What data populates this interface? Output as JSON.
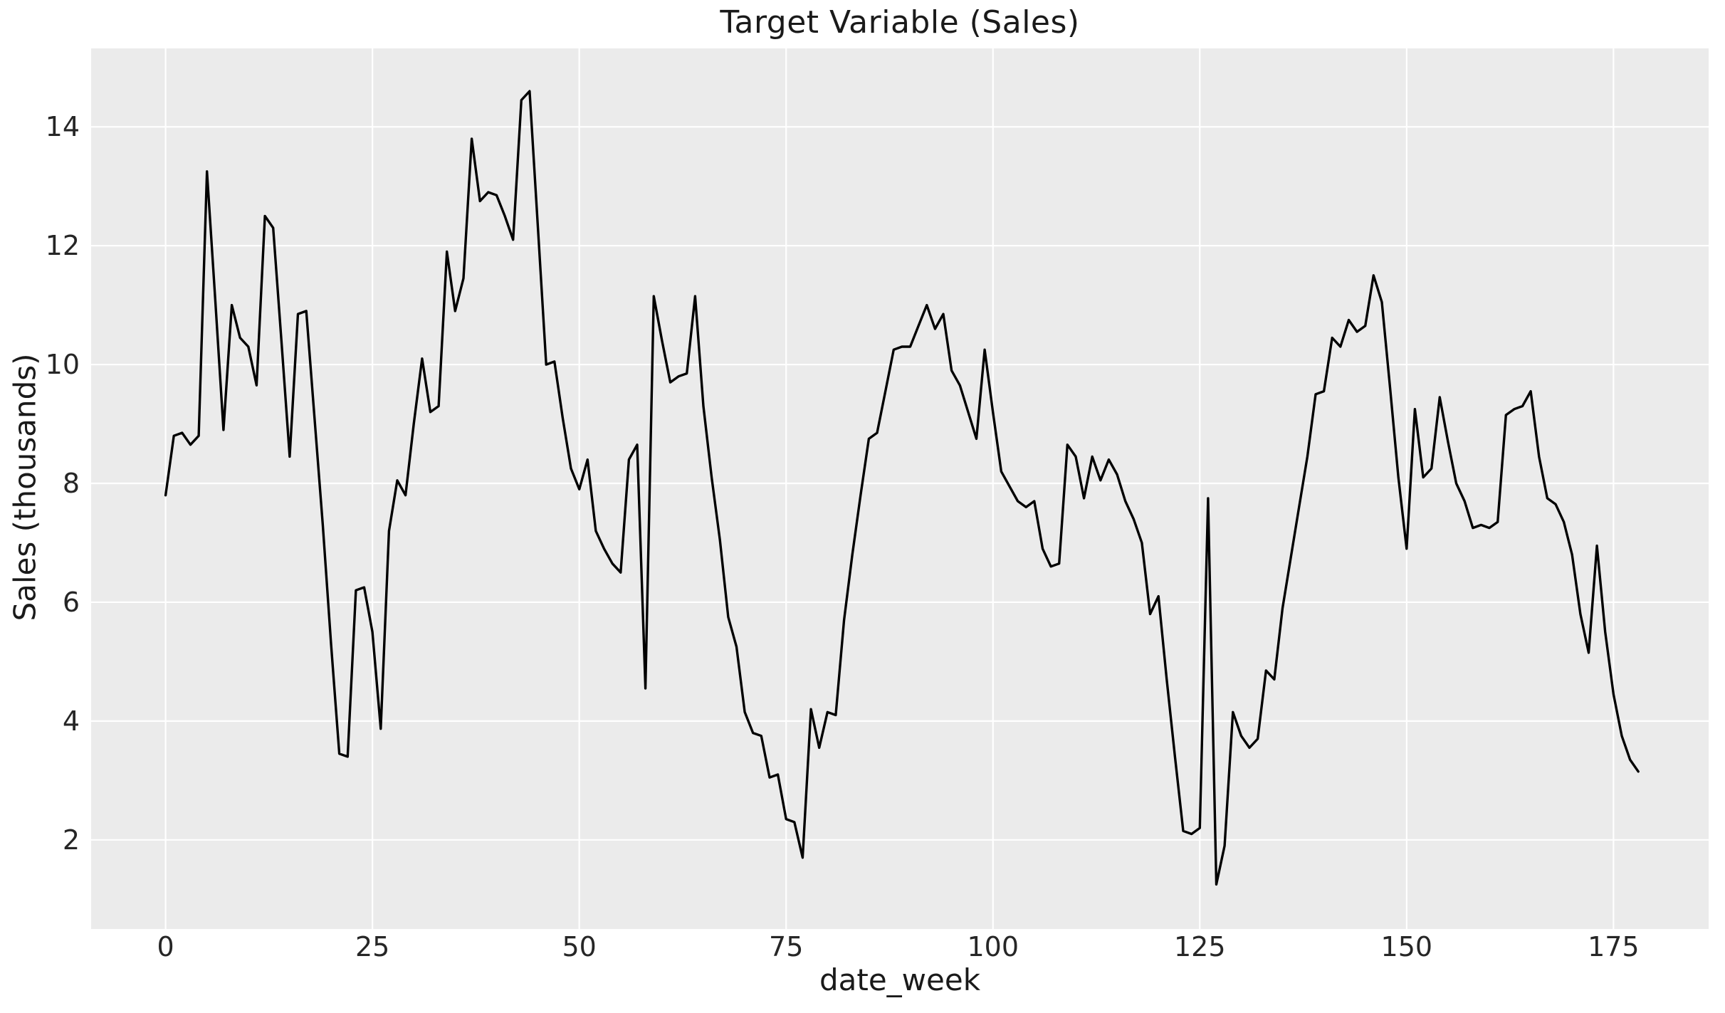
{
  "chart_data": {
    "type": "line",
    "title": "Target Variable (Sales)",
    "xlabel": "date_week",
    "ylabel": "Sales (thousands)",
    "series_name": "Sales",
    "x_start": 0,
    "x_step": 1,
    "values": [
      7.8,
      8.8,
      8.85,
      8.65,
      8.8,
      13.25,
      11.1,
      8.9,
      11.0,
      10.45,
      10.3,
      9.65,
      12.5,
      12.3,
      10.4,
      8.45,
      10.85,
      10.9,
      9.1,
      7.3,
      5.3,
      3.45,
      3.4,
      6.2,
      6.25,
      5.5,
      3.87,
      7.2,
      8.05,
      7.8,
      9.0,
      10.1,
      9.2,
      9.3,
      11.9,
      10.9,
      11.45,
      13.8,
      12.75,
      12.9,
      12.85,
      12.5,
      12.1,
      14.45,
      14.6,
      12.3,
      10.0,
      10.05,
      9.1,
      8.25,
      7.9,
      8.4,
      7.2,
      6.9,
      6.65,
      6.5,
      8.4,
      8.65,
      4.55,
      11.15,
      10.4,
      9.7,
      9.8,
      9.85,
      11.15,
      9.3,
      8.1,
      7.05,
      5.75,
      5.25,
      4.15,
      3.8,
      3.75,
      3.05,
      3.1,
      2.35,
      2.3,
      1.7,
      4.2,
      3.55,
      4.15,
      4.1,
      5.7,
      6.8,
      7.8,
      8.75,
      8.85,
      9.55,
      10.25,
      10.3,
      10.3,
      10.65,
      11.0,
      10.6,
      10.85,
      9.9,
      9.65,
      9.2,
      8.75,
      10.25,
      9.2,
      8.2,
      7.95,
      7.7,
      7.6,
      7.7,
      6.9,
      6.6,
      6.65,
      8.65,
      8.45,
      7.75,
      8.45,
      8.05,
      8.4,
      8.15,
      7.7,
      7.4,
      7.0,
      5.8,
      6.1,
      4.7,
      3.4,
      2.15,
      2.1,
      2.2,
      7.75,
      1.25,
      1.9,
      4.15,
      3.75,
      3.55,
      3.7,
      4.85,
      4.7,
      5.9,
      6.75,
      7.6,
      8.45,
      9.5,
      9.55,
      10.45,
      10.3,
      10.75,
      10.55,
      10.65,
      11.5,
      11.05,
      9.6,
      8.1,
      6.9,
      9.25,
      8.1,
      8.25,
      9.45,
      8.7,
      8.0,
      7.7,
      7.25,
      7.3,
      7.25,
      7.35,
      9.15,
      9.25,
      9.3,
      9.55,
      8.45,
      7.75,
      7.65,
      7.35,
      6.8,
      5.8,
      5.15,
      6.95,
      5.5,
      4.45,
      3.75,
      3.35,
      3.15
    ],
    "xlim": [
      -9.0,
      186.5
    ],
    "ylim": [
      0.5,
      15.32
    ],
    "x_ticks": [
      0,
      25,
      50,
      75,
      100,
      125,
      150,
      175
    ],
    "y_ticks": [
      2,
      4,
      6,
      8,
      10,
      12,
      14
    ],
    "grid": true,
    "legend_position": "none",
    "style": {
      "plot_bg": "#ebebeb",
      "grid_color": "#ffffff",
      "line_color": "#000000",
      "tick_color": "#262626",
      "line_width": 3.4,
      "tick_font_size": 38
    }
  }
}
